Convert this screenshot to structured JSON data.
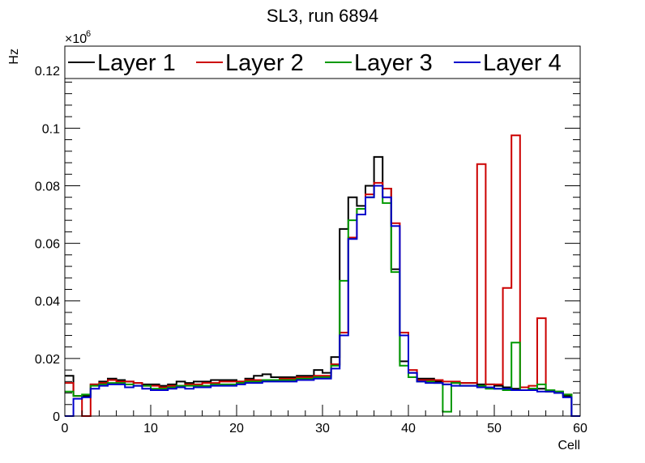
{
  "chart_data": {
    "type": "line",
    "title": "SL3, run 6894",
    "xlabel": "Cell",
    "ylabel": "Hz",
    "y_multiplier": "×10",
    "y_multiplier_exp": "6",
    "xlim": [
      0,
      60
    ],
    "ylim": [
      0,
      0.1285
    ],
    "x_ticks": [
      0,
      10,
      20,
      30,
      40,
      50,
      60
    ],
    "x_tick_labels": [
      "0",
      "10",
      "20",
      "30",
      "40",
      "50",
      "60"
    ],
    "y_ticks": [
      0,
      0.02,
      0.04,
      0.06,
      0.08,
      0.1,
      0.12
    ],
    "y_tick_labels": [
      "0",
      "0.02",
      "0.04",
      "0.06",
      "0.08",
      "0.1",
      "0.12"
    ],
    "grid": false,
    "legend_position": "top",
    "bin_edges_start": 0,
    "bin_width": 1,
    "series": [
      {
        "name": "Layer 1",
        "color": "#000000",
        "values": [
          0.014,
          0.007,
          0.007,
          0.011,
          0.012,
          0.013,
          0.0125,
          0.012,
          0.0115,
          0.011,
          0.011,
          0.0105,
          0.011,
          0.012,
          0.0115,
          0.012,
          0.012,
          0.0125,
          0.0125,
          0.0125,
          0.012,
          0.013,
          0.014,
          0.0145,
          0.0135,
          0.0135,
          0.0135,
          0.014,
          0.014,
          0.016,
          0.015,
          0.0205,
          0.065,
          0.076,
          0.073,
          0.08,
          0.09,
          0.079,
          0.051,
          0.019,
          0.015,
          0.013,
          0.013,
          0.012,
          0.011,
          0.0115,
          0.0115,
          0.0115,
          0.011,
          0.011,
          0.0105,
          0.01,
          0.0095,
          0.009,
          0.0095,
          0.0095,
          0.0085,
          0.0085,
          0.007,
          0.0
        ]
      },
      {
        "name": "Layer 2",
        "color": "#cc0000",
        "values": [
          0.0115,
          0.007,
          0.0,
          0.011,
          0.0115,
          0.0125,
          0.012,
          0.012,
          0.0115,
          0.0105,
          0.0105,
          0.01,
          0.0105,
          0.0105,
          0.011,
          0.011,
          0.0115,
          0.0115,
          0.012,
          0.012,
          0.012,
          0.0125,
          0.0125,
          0.0125,
          0.0125,
          0.013,
          0.013,
          0.0135,
          0.0135,
          0.014,
          0.014,
          0.018,
          0.029,
          0.062,
          0.072,
          0.077,
          0.081,
          0.079,
          0.067,
          0.029,
          0.016,
          0.0125,
          0.0125,
          0.0125,
          0.012,
          0.012,
          0.0115,
          0.0115,
          0.0875,
          0.011,
          0.011,
          0.0445,
          0.0975,
          0.01,
          0.0105,
          0.034,
          0.009,
          0.008,
          0.0075,
          0.0
        ]
      },
      {
        "name": "Layer 3",
        "color": "#009900",
        "values": [
          0.0085,
          0.007,
          0.0075,
          0.0105,
          0.011,
          0.0115,
          0.0115,
          0.011,
          0.0105,
          0.0105,
          0.0095,
          0.0095,
          0.01,
          0.0105,
          0.0105,
          0.0105,
          0.0105,
          0.011,
          0.011,
          0.011,
          0.0115,
          0.012,
          0.012,
          0.0125,
          0.0125,
          0.0125,
          0.0125,
          0.013,
          0.013,
          0.0135,
          0.0135,
          0.0175,
          0.047,
          0.068,
          0.072,
          0.076,
          0.08,
          0.074,
          0.05,
          0.0175,
          0.0135,
          0.012,
          0.012,
          0.0115,
          0.0015,
          0.0115,
          0.0105,
          0.0105,
          0.0105,
          0.0095,
          0.0095,
          0.009,
          0.0255,
          0.009,
          0.0095,
          0.011,
          0.009,
          0.0085,
          0.0075,
          0.0
        ]
      },
      {
        "name": "Layer 4",
        "color": "#0000cc",
        "values": [
          0.0,
          0.006,
          0.0065,
          0.0095,
          0.0105,
          0.011,
          0.011,
          0.01,
          0.0105,
          0.0095,
          0.009,
          0.009,
          0.0095,
          0.01,
          0.0095,
          0.01,
          0.01,
          0.0105,
          0.0105,
          0.0105,
          0.011,
          0.0115,
          0.0115,
          0.012,
          0.012,
          0.012,
          0.012,
          0.0125,
          0.0125,
          0.013,
          0.013,
          0.0165,
          0.028,
          0.0615,
          0.07,
          0.076,
          0.08,
          0.076,
          0.066,
          0.028,
          0.015,
          0.012,
          0.0115,
          0.0115,
          0.011,
          0.0105,
          0.0105,
          0.0105,
          0.01,
          0.01,
          0.0095,
          0.0095,
          0.009,
          0.009,
          0.009,
          0.0085,
          0.0085,
          0.008,
          0.0065,
          0.0
        ]
      }
    ]
  }
}
